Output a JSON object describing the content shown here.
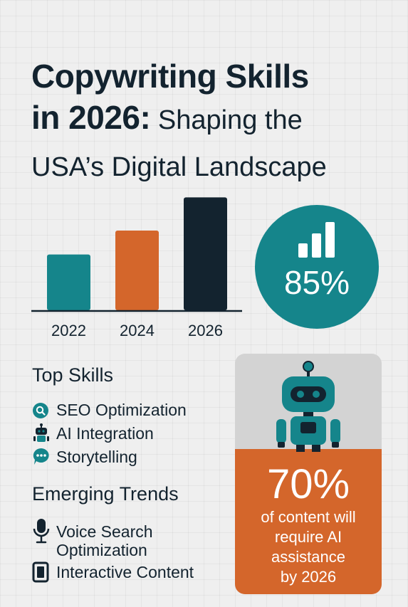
{
  "title": {
    "line1": "Copywriting Skills",
    "line2_bold": "in 2026:",
    "line2_rest": " Shaping the",
    "line3": "USA’s Digital Landscape"
  },
  "chart_data": {
    "type": "bar",
    "categories": [
      "2022",
      "2024",
      "2026"
    ],
    "values": [
      4.2,
      6.0,
      8.5
    ],
    "colors": [
      "#15858b",
      "#d4662b",
      "#13232f"
    ],
    "ylim": [
      0,
      9
    ],
    "xlabel": "",
    "ylabel": "",
    "grid": false
  },
  "stat_circle": {
    "value": "85%",
    "icon": "bar-chart-icon",
    "color": "#15858b"
  },
  "top_skills": {
    "heading": "Top Skills",
    "items": [
      {
        "label": "SEO Optimization",
        "icon": "search-icon"
      },
      {
        "label": "AI Integration",
        "icon": "robot-icon"
      },
      {
        "label": "Storytelling",
        "icon": "chat-bubble-icon"
      }
    ]
  },
  "emerging_trends": {
    "heading": "Emerging Trends",
    "items": [
      {
        "label": "Voice Search",
        "icon": "microphone-icon"
      },
      {
        "label": "Optimization",
        "icon": ""
      },
      {
        "label": "Interactive Content",
        "icon": "tablet-icon"
      }
    ]
  },
  "ai_card": {
    "value": "70%",
    "caption_lines": [
      "of content will",
      "require AI",
      "assistance",
      "by 2026"
    ],
    "icon": "robot-icon",
    "accent": "#d4662b"
  }
}
